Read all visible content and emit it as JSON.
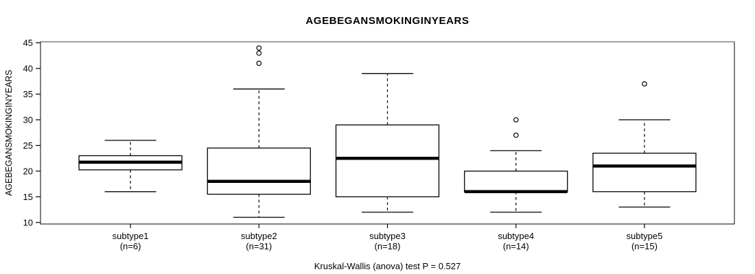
{
  "figure": {
    "title": "AGEBEGANSMOKINGINYEARS",
    "y_axis_label": "AGEBEGANSMOKINGINYEARS",
    "footer": "Kruskal-Wallis (anova) test P = 0.527"
  },
  "chart_data": {
    "type": "boxplot",
    "title": "AGEBEGANSMOKINGINYEARS",
    "xlabel": "",
    "ylabel": "AGEBEGANSMOKINGINYEARS",
    "ylim": [
      9.7,
      45.2
    ],
    "y_ticks": [
      10,
      15,
      20,
      25,
      30,
      35,
      40,
      45
    ],
    "grid": false,
    "annotation": "Kruskal-Wallis (anova) test P = 0.527",
    "groups": [
      {
        "label": "subtype1",
        "sublabel": "(n=6)",
        "n": 6,
        "whisker_low": 16,
        "q1": 20.25,
        "median": 21.75,
        "q3": 23,
        "whisker_high": 26,
        "outliers": []
      },
      {
        "label": "subtype2",
        "sublabel": "(n=31)",
        "n": 31,
        "whisker_low": 11,
        "q1": 15.5,
        "median": 18,
        "q3": 24.5,
        "whisker_high": 36,
        "outliers": [
          41,
          43,
          44
        ]
      },
      {
        "label": "subtype3",
        "sublabel": "(n=18)",
        "n": 18,
        "whisker_low": 12,
        "q1": 15,
        "median": 22.5,
        "q3": 29,
        "whisker_high": 39,
        "outliers": []
      },
      {
        "label": "subtype4",
        "sublabel": "(n=14)",
        "n": 14,
        "whisker_low": 12,
        "q1": 16,
        "median": 16,
        "q3": 20,
        "whisker_high": 24,
        "outliers": [
          27,
          30
        ]
      },
      {
        "label": "subtype5",
        "sublabel": "(n=15)",
        "n": 15,
        "whisker_low": 13,
        "q1": 16,
        "median": 21,
        "q3": 23.5,
        "whisker_high": 30,
        "outliers": [
          37
        ]
      }
    ],
    "colors": {
      "background": "#ffffff",
      "stroke": "#000000",
      "box_fill": "#ffffff",
      "plot_border_top": "#828282"
    }
  }
}
